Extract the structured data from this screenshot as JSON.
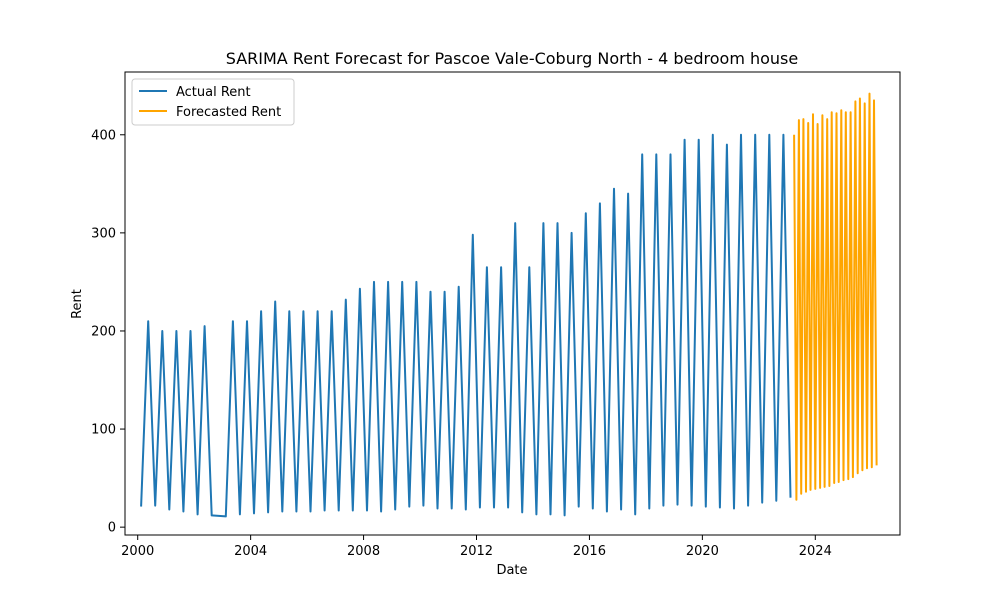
{
  "chart_data": {
    "type": "line",
    "title": "SARIMA Rent Forecast for Pascoe Vale-Coburg North - 4 bedroom house",
    "xlabel": "Date",
    "ylabel": "Rent",
    "xlim": [
      1999.55,
      2027.0
    ],
    "ylim": [
      -8,
      464
    ],
    "x_ticks": [
      2000,
      2004,
      2008,
      2012,
      2016,
      2020,
      2024
    ],
    "x_tick_labels": [
      "2000",
      "2004",
      "2008",
      "2012",
      "2016",
      "2020",
      "2024"
    ],
    "y_ticks": [
      0,
      100,
      200,
      300,
      400
    ],
    "y_tick_labels": [
      "0",
      "100",
      "200",
      "300",
      "400"
    ],
    "grid": false,
    "legend": "upper-left",
    "series": [
      {
        "name": "Actual Rent",
        "color": "#1f77b4",
        "points": [
          [
            2000.12,
            21
          ],
          [
            2000.37,
            210
          ],
          [
            2000.62,
            22
          ],
          [
            2000.87,
            200
          ],
          [
            2001.12,
            18
          ],
          [
            2001.37,
            200
          ],
          [
            2001.62,
            16
          ],
          [
            2001.87,
            200
          ],
          [
            2002.12,
            13
          ],
          [
            2002.37,
            205
          ],
          [
            2002.62,
            12
          ],
          [
            2003.12,
            11
          ],
          [
            2003.37,
            210
          ],
          [
            2003.62,
            13
          ],
          [
            2003.87,
            210
          ],
          [
            2004.12,
            14
          ],
          [
            2004.37,
            220
          ],
          [
            2004.62,
            15
          ],
          [
            2004.87,
            230
          ],
          [
            2005.12,
            16
          ],
          [
            2005.37,
            220
          ],
          [
            2005.62,
            16
          ],
          [
            2005.87,
            220
          ],
          [
            2006.12,
            16
          ],
          [
            2006.37,
            220
          ],
          [
            2006.62,
            17
          ],
          [
            2006.87,
            220
          ],
          [
            2007.12,
            17
          ],
          [
            2007.37,
            232
          ],
          [
            2007.62,
            17
          ],
          [
            2007.87,
            243
          ],
          [
            2008.12,
            17
          ],
          [
            2008.37,
            250
          ],
          [
            2008.62,
            16
          ],
          [
            2008.87,
            250
          ],
          [
            2009.12,
            18
          ],
          [
            2009.37,
            250
          ],
          [
            2009.62,
            21
          ],
          [
            2009.87,
            250
          ],
          [
            2010.12,
            22
          ],
          [
            2010.37,
            240
          ],
          [
            2010.62,
            19
          ],
          [
            2010.87,
            240
          ],
          [
            2011.12,
            19
          ],
          [
            2011.37,
            245
          ],
          [
            2011.62,
            18
          ],
          [
            2011.87,
            298
          ],
          [
            2012.12,
            20
          ],
          [
            2012.37,
            265
          ],
          [
            2012.62,
            20
          ],
          [
            2012.87,
            265
          ],
          [
            2013.12,
            20
          ],
          [
            2013.37,
            310
          ],
          [
            2013.62,
            15
          ],
          [
            2013.87,
            265
          ],
          [
            2014.12,
            13
          ],
          [
            2014.37,
            310
          ],
          [
            2014.62,
            13
          ],
          [
            2014.87,
            310
          ],
          [
            2015.12,
            12
          ],
          [
            2015.37,
            300
          ],
          [
            2015.62,
            21
          ],
          [
            2015.87,
            320
          ],
          [
            2016.12,
            19
          ],
          [
            2016.37,
            330
          ],
          [
            2016.62,
            16
          ],
          [
            2016.87,
            345
          ],
          [
            2017.12,
            18
          ],
          [
            2017.37,
            340
          ],
          [
            2017.62,
            13
          ],
          [
            2017.87,
            380
          ],
          [
            2018.12,
            19
          ],
          [
            2018.37,
            380
          ],
          [
            2018.62,
            22
          ],
          [
            2018.87,
            380
          ],
          [
            2019.12,
            23
          ],
          [
            2019.37,
            395
          ],
          [
            2019.62,
            22
          ],
          [
            2019.87,
            395
          ],
          [
            2020.12,
            21
          ],
          [
            2020.37,
            400
          ],
          [
            2020.62,
            20
          ],
          [
            2020.87,
            390
          ],
          [
            2021.12,
            19
          ],
          [
            2021.37,
            400
          ],
          [
            2021.62,
            22
          ],
          [
            2021.87,
            400
          ],
          [
            2022.12,
            25
          ],
          [
            2022.37,
            400
          ],
          [
            2022.62,
            27
          ],
          [
            2022.87,
            400
          ],
          [
            2023.12,
            30
          ]
        ]
      },
      {
        "name": "Forecasted Rent",
        "color": "#ffa500",
        "points": [
          [
            2023.25,
            400
          ],
          [
            2023.33,
            28
          ],
          [
            2023.42,
            415
          ],
          [
            2023.5,
            34
          ],
          [
            2023.58,
            416
          ],
          [
            2023.67,
            36
          ],
          [
            2023.75,
            412
          ],
          [
            2023.83,
            38
          ],
          [
            2023.92,
            421
          ],
          [
            2024.0,
            39
          ],
          [
            2024.08,
            411
          ],
          [
            2024.17,
            40
          ],
          [
            2024.25,
            420
          ],
          [
            2024.33,
            41
          ],
          [
            2024.42,
            416
          ],
          [
            2024.5,
            42
          ],
          [
            2024.58,
            423
          ],
          [
            2024.67,
            45
          ],
          [
            2024.75,
            422
          ],
          [
            2024.83,
            46
          ],
          [
            2024.92,
            425
          ],
          [
            2025.0,
            48
          ],
          [
            2025.08,
            423
          ],
          [
            2025.17,
            49
          ],
          [
            2025.25,
            423
          ],
          [
            2025.33,
            51
          ],
          [
            2025.42,
            434
          ],
          [
            2025.5,
            55
          ],
          [
            2025.58,
            437
          ],
          [
            2025.67,
            58
          ],
          [
            2025.75,
            432
          ],
          [
            2025.83,
            60
          ],
          [
            2025.92,
            442
          ],
          [
            2026.0,
            61
          ],
          [
            2026.08,
            435
          ],
          [
            2026.17,
            63
          ]
        ]
      }
    ]
  }
}
